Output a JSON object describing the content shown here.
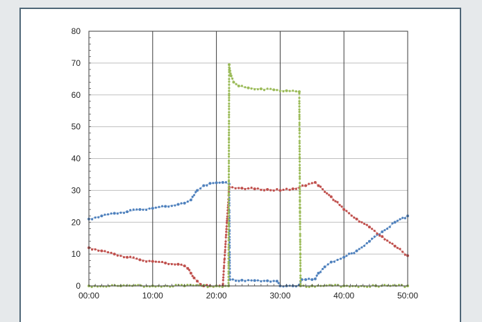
{
  "chart_data": {
    "type": "scatter",
    "title": "",
    "xlabel": "",
    "ylabel": "",
    "x_unit": "minutes",
    "xlim": [
      0,
      50
    ],
    "ylim": [
      0,
      80
    ],
    "x_ticks": [
      0,
      10,
      20,
      30,
      40,
      50
    ],
    "x_tick_labels": [
      "00:00",
      "10:00",
      "20:00",
      "30:00",
      "40:00",
      "50:00"
    ],
    "y_ticks": [
      0,
      10,
      20,
      30,
      40,
      50,
      60,
      70,
      80
    ],
    "y_tick_labels": [
      "0",
      "10",
      "20",
      "30",
      "40",
      "50",
      "60",
      "70",
      "80"
    ],
    "grid": true,
    "legend": "none",
    "series": [
      {
        "color": "#4f81bd",
        "points": [
          [
            0,
            21
          ],
          [
            2,
            22
          ],
          [
            4,
            22.8
          ],
          [
            6,
            23.3
          ],
          [
            8,
            24
          ],
          [
            10,
            24.4
          ],
          [
            12,
            25
          ],
          [
            14,
            25.6
          ],
          [
            15,
            26
          ],
          [
            16,
            27
          ],
          [
            17,
            30
          ],
          [
            18,
            31.5
          ],
          [
            19,
            32.2
          ],
          [
            20,
            32.4
          ],
          [
            21,
            32.5
          ],
          [
            22,
            32
          ],
          [
            22.1,
            2
          ],
          [
            24,
            1.8
          ],
          [
            26,
            1.7
          ],
          [
            28,
            1.6
          ],
          [
            29.5,
            1.5
          ],
          [
            30,
            0
          ],
          [
            31,
            0
          ],
          [
            32,
            0
          ],
          [
            33,
            0.3
          ],
          [
            33.4,
            2
          ],
          [
            34,
            2
          ],
          [
            35,
            2
          ],
          [
            35.5,
            2.2
          ],
          [
            36,
            4
          ],
          [
            37,
            6
          ],
          [
            38,
            7.5
          ],
          [
            40,
            9
          ],
          [
            42,
            11
          ],
          [
            44,
            14
          ],
          [
            46,
            17
          ],
          [
            48,
            20
          ],
          [
            50,
            22
          ]
        ]
      },
      {
        "color": "#c0504d",
        "points": [
          [
            0,
            12
          ],
          [
            2,
            11
          ],
          [
            4,
            10
          ],
          [
            6,
            9
          ],
          [
            8,
            8.2
          ],
          [
            10,
            7.7
          ],
          [
            12,
            7.2
          ],
          [
            14,
            6.8
          ],
          [
            15,
            6.3
          ],
          [
            15.5,
            5.5
          ],
          [
            16,
            4
          ],
          [
            16.5,
            2.5
          ],
          [
            17,
            1.5
          ],
          [
            17.5,
            0.5
          ],
          [
            18,
            0
          ],
          [
            19,
            0
          ],
          [
            20,
            0
          ],
          [
            21,
            0
          ],
          [
            22,
            31
          ],
          [
            24,
            30.7
          ],
          [
            26,
            30.5
          ],
          [
            28,
            30.3
          ],
          [
            30,
            30
          ],
          [
            32,
            30.5
          ],
          [
            34,
            31.5
          ],
          [
            35.5,
            32.5
          ],
          [
            36,
            31.5
          ],
          [
            38,
            28
          ],
          [
            40,
            24
          ],
          [
            42,
            21
          ],
          [
            44,
            18.5
          ],
          [
            46,
            15.5
          ],
          [
            48,
            12.5
          ],
          [
            50,
            9.5
          ]
        ]
      },
      {
        "color": "#9bbb59",
        "points": [
          [
            0,
            0
          ],
          [
            5,
            0
          ],
          [
            10,
            0
          ],
          [
            15,
            0
          ],
          [
            20,
            0
          ],
          [
            21.9,
            0
          ],
          [
            22,
            69.5
          ],
          [
            22.3,
            66
          ],
          [
            22.7,
            64
          ],
          [
            23.5,
            62.8
          ],
          [
            25,
            62.2
          ],
          [
            27,
            61.9
          ],
          [
            29,
            61.6
          ],
          [
            31,
            61.3
          ],
          [
            33,
            61
          ],
          [
            33.1,
            24.5
          ],
          [
            33.2,
            0
          ],
          [
            35,
            0
          ],
          [
            40,
            0
          ],
          [
            45,
            0
          ],
          [
            50,
            0
          ]
        ]
      }
    ]
  }
}
